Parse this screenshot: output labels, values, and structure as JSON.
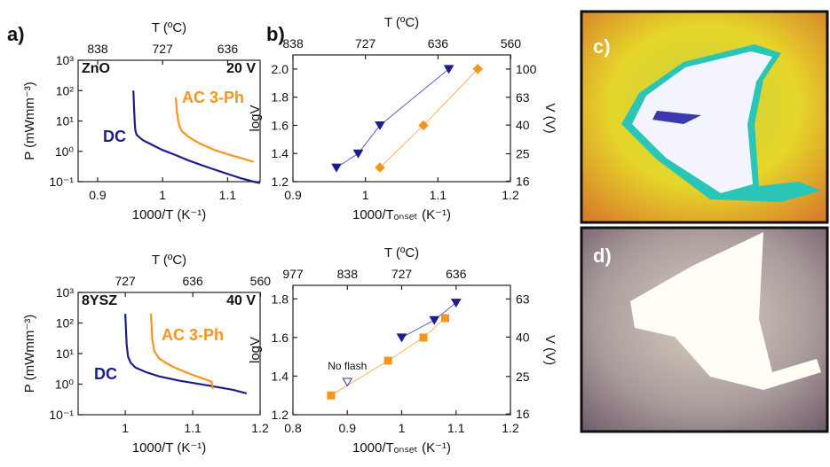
{
  "panel_labels": [
    "a)",
    "b)",
    "c)",
    "d)"
  ],
  "chart_data": [
    {
      "type": "line",
      "annotations": [
        "ZnO",
        "20 V"
      ],
      "x_label": "1000/T (K⁻¹)",
      "x2_label": "T (ºC)",
      "y_label": "P (mWmm⁻³)",
      "xlim": [
        0.87,
        1.15
      ],
      "xticks": [
        0.9,
        1,
        1.1
      ],
      "x2_scale": "1000/(T+273)",
      "x2ticks": [
        838,
        727,
        636
      ],
      "ylog": true,
      "ylim": [
        0.1,
        1000
      ],
      "yticks": [
        {
          "value": 0.1,
          "label": "10⁻¹"
        },
        {
          "value": 1,
          "label": "10⁰"
        },
        {
          "value": 10,
          "label": "10¹"
        },
        {
          "value": 100,
          "label": "10²"
        },
        {
          "value": 1000,
          "label": "10³"
        }
      ],
      "series": [
        {
          "name": "DC",
          "color": "#1c1c8e",
          "x": [
            0.955,
            0.956,
            0.957,
            0.958,
            0.96,
            0.965,
            0.97,
            0.98,
            0.99,
            1.0,
            1.02,
            1.04,
            1.06,
            1.08,
            1.1,
            1.12,
            1.14,
            1.15
          ],
          "values": [
            100,
            30,
            10,
            5,
            3.5,
            2.8,
            2.3,
            1.8,
            1.4,
            1.1,
            0.75,
            0.5,
            0.35,
            0.25,
            0.18,
            0.13,
            0.1,
            0.09
          ]
        },
        {
          "name": "AC 3-Ph",
          "color": "#f7941d",
          "x": [
            1.02,
            1.021,
            1.022,
            1.024,
            1.027,
            1.03,
            1.04,
            1.05,
            1.06,
            1.08,
            1.1,
            1.12,
            1.14
          ],
          "values": [
            60,
            40,
            20,
            10,
            6,
            4.5,
            3,
            2.2,
            1.7,
            1.1,
            0.8,
            0.6,
            0.45
          ]
        }
      ]
    },
    {
      "type": "scatter",
      "x_label": "1000/Tₒₙₛₑₜ (K⁻¹)",
      "x2_label": "T (ºC)",
      "y_label": "logV",
      "y2_label": "V (V)",
      "xlim": [
        0.9,
        1.2
      ],
      "xticks": [
        0.9,
        1,
        1.1,
        1.2
      ],
      "x2_scale": "1000/(T+273)",
      "x2ticks": [
        838,
        727,
        636,
        560
      ],
      "ylim": [
        1.2,
        2.1
      ],
      "yticks": [
        1.2,
        1.4,
        1.6,
        1.8,
        {
          "value": 2,
          "label": "2.0"
        }
      ],
      "y2log": true,
      "y2lim": [
        15.85,
        125.89
      ],
      "y2ticks": [
        16,
        25,
        40,
        63,
        100
      ],
      "series": [
        {
          "color": "#1c1c8e",
          "marker": "triangle-down",
          "x": [
            0.96,
            0.99,
            1.02,
            1.115
          ],
          "values": [
            1.3,
            1.4,
            1.6,
            2.0
          ]
        },
        {
          "color": "#f7941d",
          "marker": "diamond",
          "x": [
            1.02,
            1.08,
            1.155
          ],
          "values": [
            1.3,
            1.6,
            2.0
          ]
        }
      ]
    },
    {
      "type": "line",
      "annotations": [
        "8YSZ",
        "40 V"
      ],
      "x_label": "1000/T (K⁻¹)",
      "x2_label": "T (ºC)",
      "y_label": "P (mWmm⁻³)",
      "xlim": [
        0.93,
        1.2
      ],
      "xticks": [
        1,
        1.1,
        1.2
      ],
      "x2_scale": "1000/(T+273)",
      "x2ticks": [
        727,
        636,
        560
      ],
      "ylog": true,
      "ylim": [
        0.1,
        1000
      ],
      "yticks": [
        {
          "value": 0.1,
          "label": "10⁻¹"
        },
        {
          "value": 1,
          "label": "10⁰"
        },
        {
          "value": 10,
          "label": "10¹"
        },
        {
          "value": 100,
          "label": "10²"
        },
        {
          "value": 1000,
          "label": "10³"
        }
      ],
      "series": [
        {
          "name": "DC",
          "color": "#1c1c8e",
          "x": [
            1.0,
            1.001,
            1.002,
            1.004,
            1.008,
            1.015,
            1.03,
            1.05,
            1.08,
            1.1,
            1.13,
            1.16,
            1.18
          ],
          "values": [
            200,
            60,
            20,
            8,
            5,
            3.5,
            2.5,
            1.8,
            1.3,
            1.1,
            0.85,
            0.65,
            0.5
          ]
        },
        {
          "name": "AC 3-Ph",
          "color": "#f7941d",
          "x": [
            1.038,
            1.039,
            1.04,
            1.043,
            1.05,
            1.06,
            1.07,
            1.08,
            1.1,
            1.12,
            1.128,
            1.13
          ],
          "values": [
            200,
            80,
            30,
            12,
            7,
            5,
            3.8,
            3,
            2,
            1.4,
            1.2,
            0.7
          ]
        }
      ]
    },
    {
      "type": "scatter",
      "x_label": "1000/Tₒₙₛₑₜ (K⁻¹)",
      "x2_label": "T (ºC)",
      "y_label": "logV",
      "y2_label": "V (V)",
      "xlim": [
        0.8,
        1.2
      ],
      "xticks": [
        0.8,
        0.9,
        1,
        1.1,
        1.2
      ],
      "x2_scale": "1000/(T+273)",
      "x2ticks": [
        977,
        838,
        727,
        636
      ],
      "ylim": [
        1.2,
        1.87
      ],
      "yticks": [
        1.2,
        1.4,
        1.6,
        1.8
      ],
      "y2log": true,
      "y2lim": [
        15.85,
        74.13
      ],
      "y2ticks": [
        16,
        25,
        40,
        63
      ],
      "series": [
        {
          "color": "#1c1c8e",
          "marker": "triangle-down",
          "x": [
            1.0,
            1.06,
            1.1
          ],
          "values": [
            1.6,
            1.69,
            1.78
          ]
        },
        {
          "color": "#f7941d",
          "marker": "square",
          "x": [
            0.87,
            0.975,
            1.04,
            1.08
          ],
          "values": [
            1.3,
            1.48,
            1.6,
            1.7
          ]
        },
        {
          "name": "No flash",
          "color": "#2e3a9a",
          "marker": "open-triangle-down",
          "x": [
            0.9
          ],
          "values": [
            1.37
          ]
        }
      ]
    }
  ]
}
